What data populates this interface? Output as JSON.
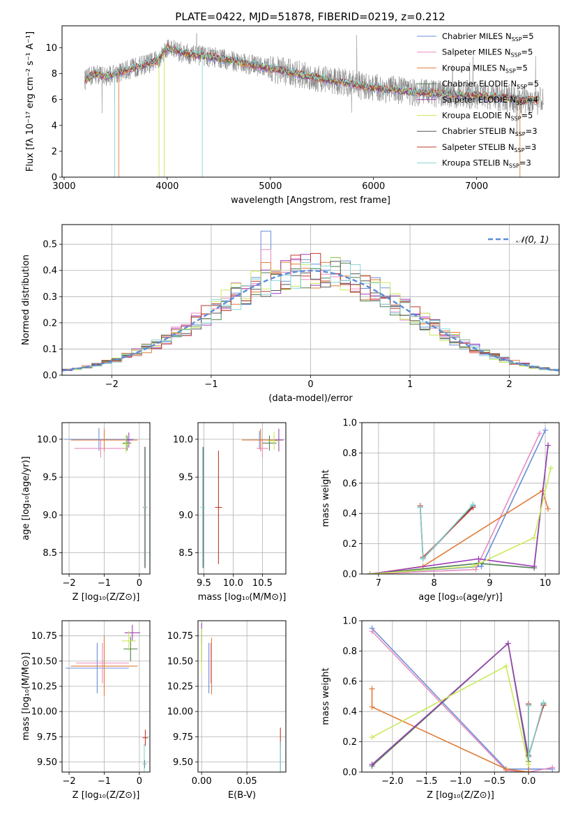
{
  "figure": {
    "title": "PLATE=0422, MJD=51878, FIBERID=0219, z=0.212"
  },
  "colors": {
    "Chabrier MILES": "#6a8fd8",
    "Salpeter MILES": "#e88bc0",
    "Kroupa MILES": "#e07b39",
    "Chabrier ELODIE": "#4f7f4f",
    "Salpeter ELODIE": "#9b3fb5",
    "Kroupa ELODIE": "#c9ea5a",
    "Chabrier STELIB": "#555555",
    "Salpeter STELIB": "#c0392b",
    "Kroupa STELIB": "#86d4d4",
    "data": "#808080",
    "gaussian": "#5b8bd8"
  },
  "chart_data": [
    {
      "id": "spectrum",
      "type": "line",
      "xlabel": "wavelength [Angstrom, rest frame]",
      "ylabel": "Flux [fλ 10⁻¹⁷ erg cm⁻² s⁻¹ A⁻¹]",
      "xlim": [
        2980,
        7800
      ],
      "ylim": [
        0,
        11.7
      ],
      "xticks": [
        3000,
        4000,
        5000,
        6000,
        7000
      ],
      "yticks": [
        0,
        2,
        4,
        6,
        8,
        10
      ],
      "legend_position": "top-right",
      "legend": [
        {
          "name": "Chabrier MILES",
          "nssp": "5"
        },
        {
          "name": "Salpeter MILES",
          "nssp": "5"
        },
        {
          "name": "Kroupa MILES",
          "nssp": "5"
        },
        {
          "name": "Chabrier ELODIE",
          "nssp": "5"
        },
        {
          "name": "Salpeter ELODIE",
          "nssp": "4"
        },
        {
          "name": "Kroupa ELODIE",
          "nssp": "5"
        },
        {
          "name": "Chabrier STELIB",
          "nssp": "3"
        },
        {
          "name": "Salpeter STELIB",
          "nssp": "3"
        },
        {
          "name": "Kroupa STELIB",
          "nssp": "3"
        }
      ],
      "continuum_knots": {
        "x": [
          3200,
          3300,
          3400,
          3500,
          3700,
          3900,
          4000,
          4200,
          4500,
          5000,
          5500,
          6000,
          6500,
          7000,
          7300,
          7600
        ],
        "y": [
          7.5,
          8.0,
          7.8,
          8.0,
          8.5,
          9.0,
          10.0,
          9.5,
          9.2,
          8.4,
          7.6,
          6.9,
          6.5,
          6.3,
          6.1,
          5.9
        ]
      }
    },
    {
      "id": "residuals",
      "type": "line",
      "xlabel": "(data-model)/error",
      "ylabel": "Normed distribution",
      "xlim": [
        -2.5,
        2.5
      ],
      "ylim": [
        0,
        0.575
      ],
      "xticks": [
        -2,
        -1,
        0,
        1,
        2
      ],
      "yticks": [
        0.0,
        0.1,
        0.2,
        0.3,
        0.4,
        0.5
      ],
      "grid": true,
      "legend_position": "top-right",
      "legend": [
        "𝒩(0, 1)"
      ],
      "gaussian": {
        "mean": 0,
        "sigma": 1
      },
      "bin_width": 0.1,
      "hist_peak": {
        "x": -0.45,
        "values": [
          0.55,
          0.48,
          0.43
        ]
      }
    },
    {
      "id": "age_vs_Z",
      "type": "scatter",
      "xlabel": "Z [log₁₀(Z/Z⊙)]",
      "ylabel": "age  [log₁₀(age/yr)]",
      "xlim": [
        -2.2,
        0.3
      ],
      "ylim": [
        8.22,
        10.22
      ],
      "xticks": [
        -2,
        -1,
        0
      ],
      "yticks": [
        8.5,
        9.0,
        9.5,
        10.0
      ],
      "grid": true,
      "points": [
        {
          "model": "Chabrier MILES",
          "x": -1.15,
          "y": 10.0,
          "xerr": 1.0,
          "yerr": 0.15
        },
        {
          "model": "Salpeter MILES",
          "x": -1.1,
          "y": 9.88,
          "xerr": 0.75,
          "yerr": 0.12
        },
        {
          "model": "Kroupa MILES",
          "x": -1.0,
          "y": 9.99,
          "xerr": 0.95,
          "yerr": 0.15
        },
        {
          "model": "Chabrier ELODIE",
          "x": -0.35,
          "y": 9.95,
          "xerr": 0.12,
          "yerr": 0.1
        },
        {
          "model": "Salpeter ELODIE",
          "x": -0.3,
          "y": 9.99,
          "xerr": 0.1,
          "yerr": 0.1
        },
        {
          "model": "Kroupa ELODIE",
          "x": -0.38,
          "y": 9.94,
          "xerr": 0.12,
          "yerr": 0.12
        },
        {
          "model": "Chabrier STELIB",
          "x": 0.15,
          "y": 9.1,
          "xerr": 0.05,
          "yerr": 0.8
        },
        {
          "model": "Salpeter STELIB",
          "x": 0.17,
          "y": 9.1,
          "xerr": 0.05,
          "yerr": 0.8
        },
        {
          "model": "Kroupa STELIB",
          "x": 0.16,
          "y": 9.1,
          "xerr": 0.05,
          "yerr": 0.8
        }
      ]
    },
    {
      "id": "age_vs_mass",
      "type": "scatter",
      "xlabel": "mass [log₁₀(M/M⊙)]",
      "xlim": [
        9.4,
        10.9
      ],
      "ylim": [
        8.22,
        10.22
      ],
      "xticks": [
        9.5,
        10.0,
        10.5
      ],
      "yticks": [
        8.5,
        9.0,
        9.5,
        10.0
      ],
      "grid": true,
      "points": [
        {
          "model": "Chabrier MILES",
          "x": 10.45,
          "y": 9.99,
          "xerr": 0.12,
          "yerr": 0.12
        },
        {
          "model": "Salpeter MILES",
          "x": 10.5,
          "y": 9.88,
          "xerr": 0.1,
          "yerr": 0.12
        },
        {
          "model": "Kroupa MILES",
          "x": 10.47,
          "y": 9.99,
          "xerr": 0.32,
          "yerr": 0.15
        },
        {
          "model": "Chabrier ELODIE",
          "x": 10.62,
          "y": 9.95,
          "xerr": 0.12,
          "yerr": 0.1
        },
        {
          "model": "Salpeter ELODIE",
          "x": 10.78,
          "y": 9.99,
          "xerr": 0.08,
          "yerr": 0.15
        },
        {
          "model": "Kroupa ELODIE",
          "x": 10.7,
          "y": 9.98,
          "xerr": 0.1,
          "yerr": 0.12
        },
        {
          "model": "Chabrier STELIB",
          "x": 9.49,
          "y": 9.1,
          "xerr": 0.03,
          "yerr": 0.8
        },
        {
          "model": "Salpeter STELIB",
          "x": 9.75,
          "y": 9.1,
          "xerr": 0.06,
          "yerr": 0.75
        },
        {
          "model": "Kroupa STELIB",
          "x": 9.48,
          "y": 9.1,
          "xerr": 0.04,
          "yerr": 0.8
        }
      ]
    },
    {
      "id": "weight_vs_age",
      "type": "line",
      "xlabel": "age  [log₁₀(age/yr)]",
      "ylabel": "mass weight",
      "xlim": [
        6.7,
        10.25
      ],
      "ylim": [
        0,
        1.0
      ],
      "xticks": [
        7,
        8,
        9,
        10
      ],
      "yticks": [
        0.0,
        0.2,
        0.4,
        0.6,
        0.8,
        1.0
      ],
      "grid": true,
      "series": [
        {
          "name": "Chabrier MILES",
          "x": [
            6.85,
            8.85,
            10.0
          ],
          "y": [
            0.0,
            0.05,
            0.95
          ]
        },
        {
          "name": "Salpeter MILES",
          "x": [
            6.85,
            8.75,
            9.9
          ],
          "y": [
            0.0,
            0.03,
            0.93
          ]
        },
        {
          "name": "Kroupa MILES",
          "x": [
            6.85,
            7.8,
            9.95,
            10.05
          ],
          "y": [
            0.0,
            0.05,
            0.55,
            0.43
          ]
        },
        {
          "name": "Chabrier ELODIE",
          "x": [
            6.85,
            8.8,
            9.8,
            10.05
          ],
          "y": [
            0.0,
            0.07,
            0.04,
            0.85
          ]
        },
        {
          "name": "Salpeter ELODIE",
          "x": [
            6.85,
            8.8,
            9.8,
            10.05
          ],
          "y": [
            0.0,
            0.1,
            0.05,
            0.85
          ]
        },
        {
          "name": "Kroupa ELODIE",
          "x": [
            6.85,
            8.7,
            9.8,
            10.1
          ],
          "y": [
            0.0,
            0.05,
            0.24,
            0.7
          ]
        },
        {
          "name": "Chabrier STELIB",
          "x": [
            7.75,
            7.8,
            8.7
          ],
          "y": [
            0.44,
            0.1,
            0.45
          ]
        },
        {
          "name": "Salpeter STELIB",
          "x": [
            7.75,
            7.8,
            8.7
          ],
          "y": [
            0.45,
            0.11,
            0.44
          ]
        },
        {
          "name": "Kroupa STELIB",
          "x": [
            7.75,
            7.8,
            8.7
          ],
          "y": [
            0.44,
            0.1,
            0.46
          ]
        }
      ]
    },
    {
      "id": "mass_vs_Z",
      "type": "scatter",
      "xlabel": "Z [log₁₀(Z/Z⊙)]",
      "ylabel": "mass [log₁₀(M/M⊙)]",
      "xlim": [
        -2.2,
        0.3
      ],
      "ylim": [
        9.4,
        10.9
      ],
      "xticks": [
        -2,
        -1,
        0
      ],
      "yticks": [
        9.5,
        9.75,
        10.0,
        10.25,
        10.5,
        10.75
      ],
      "grid": true,
      "points": [
        {
          "model": "Chabrier MILES",
          "x": -1.2,
          "y": 10.43,
          "xerr": 0.9,
          "yerr": 0.25
        },
        {
          "model": "Salpeter MILES",
          "x": -1.05,
          "y": 10.48,
          "xerr": 0.75,
          "yerr": 0.2
        },
        {
          "model": "Kroupa MILES",
          "x": -1.0,
          "y": 10.45,
          "xerr": 0.95,
          "yerr": 0.3
        },
        {
          "model": "Chabrier ELODIE",
          "x": -0.25,
          "y": 10.62,
          "xerr": 0.2,
          "yerr": 0.12
        },
        {
          "model": "Salpeter ELODIE",
          "x": -0.2,
          "y": 10.78,
          "xerr": 0.22,
          "yerr": 0.08
        },
        {
          "model": "Kroupa ELODIE",
          "x": -0.3,
          "y": 10.7,
          "xerr": 0.2,
          "yerr": 0.1
        },
        {
          "model": "Chabrier STELIB",
          "x": 0.15,
          "y": 9.48,
          "xerr": 0.05,
          "yerr": 0.04
        },
        {
          "model": "Salpeter STELIB",
          "x": 0.17,
          "y": 9.74,
          "xerr": 0.08,
          "yerr": 0.08
        },
        {
          "model": "Kroupa STELIB",
          "x": 0.14,
          "y": 9.48,
          "xerr": 0.05,
          "yerr": 0.2
        }
      ]
    },
    {
      "id": "mass_vs_ebv",
      "type": "scatter",
      "xlabel": "E(B-V)",
      "xlim": [
        -0.004,
        0.093
      ],
      "ylim": [
        9.4,
        10.9
      ],
      "xticks": [
        0.0,
        0.05
      ],
      "yticks": [
        9.5,
        9.75,
        10.0,
        10.25,
        10.5,
        10.75
      ],
      "grid": true,
      "points": [
        {
          "model": "Chabrier MILES",
          "x": 0.008,
          "y": 10.43,
          "yerr": 0.25
        },
        {
          "model": "Salpeter MILES",
          "x": 0.01,
          "y": 10.48,
          "yerr": 0.2
        },
        {
          "model": "Kroupa MILES",
          "x": 0.011,
          "y": 10.45,
          "yerr": 0.28
        },
        {
          "model": "Chabrier ELODIE",
          "x": 0.0,
          "y": 10.62,
          "yerr": 0.12
        },
        {
          "model": "Salpeter ELODIE",
          "x": 0.0,
          "y": 10.78,
          "yerr": 0.1
        },
        {
          "model": "Kroupa ELODIE",
          "x": 0.0,
          "y": 10.6,
          "yerr": 0.22
        },
        {
          "model": "Chabrier STELIB",
          "x": 0.087,
          "y": 9.55,
          "yerr": 0.15
        },
        {
          "model": "Salpeter STELIB",
          "x": 0.087,
          "y": 9.74,
          "yerr": 0.1
        },
        {
          "model": "Kroupa STELIB",
          "x": 0.087,
          "y": 9.55,
          "yerr": 0.15
        }
      ]
    },
    {
      "id": "weight_vs_Z",
      "type": "line",
      "xlabel": "Z [log₁₀(Z/Z⊙)]",
      "ylabel": "mass weight",
      "xlim": [
        -2.45,
        0.45
      ],
      "ylim": [
        0,
        1.0
      ],
      "xticks": [
        -2.0,
        -1.5,
        -1.0,
        -0.5,
        0.0
      ],
      "yticks": [
        0.0,
        0.2,
        0.4,
        0.6,
        0.8,
        1.0
      ],
      "grid": true,
      "series": [
        {
          "name": "Chabrier MILES",
          "x": [
            -2.3,
            -0.33,
            0.0,
            0.35
          ],
          "y": [
            0.95,
            0.02,
            0.02,
            0.02
          ]
        },
        {
          "name": "Salpeter MILES",
          "x": [
            -2.3,
            -0.33,
            0.0,
            0.35
          ],
          "y": [
            0.93,
            0.01,
            0.0,
            0.03
          ]
        },
        {
          "name": "Kroupa MILES",
          "x": [
            -2.3,
            -2.3,
            -0.33,
            0.0,
            0.0
          ],
          "y": [
            0.55,
            0.43,
            0.02,
            0.0,
            0.44
          ]
        },
        {
          "name": "Chabrier ELODIE",
          "x": [
            -2.3,
            -0.3,
            0.0
          ],
          "y": [
            0.04,
            0.85,
            0.07
          ]
        },
        {
          "name": "Salpeter ELODIE",
          "x": [
            -2.3,
            -0.3,
            0.0
          ],
          "y": [
            0.05,
            0.85,
            0.1
          ]
        },
        {
          "name": "Kroupa ELODIE",
          "x": [
            -2.3,
            -0.33,
            0.0
          ],
          "y": [
            0.23,
            0.7,
            0.05
          ]
        },
        {
          "name": "Chabrier STELIB",
          "x": [
            0.0,
            0.0,
            0.22
          ],
          "y": [
            0.44,
            0.1,
            0.45
          ]
        },
        {
          "name": "Salpeter STELIB",
          "x": [
            0.0,
            0.0,
            0.22
          ],
          "y": [
            0.45,
            0.11,
            0.44
          ]
        },
        {
          "name": "Kroupa STELIB",
          "x": [
            0.0,
            0.0,
            0.22
          ],
          "y": [
            0.44,
            0.1,
            0.46
          ]
        }
      ]
    }
  ]
}
